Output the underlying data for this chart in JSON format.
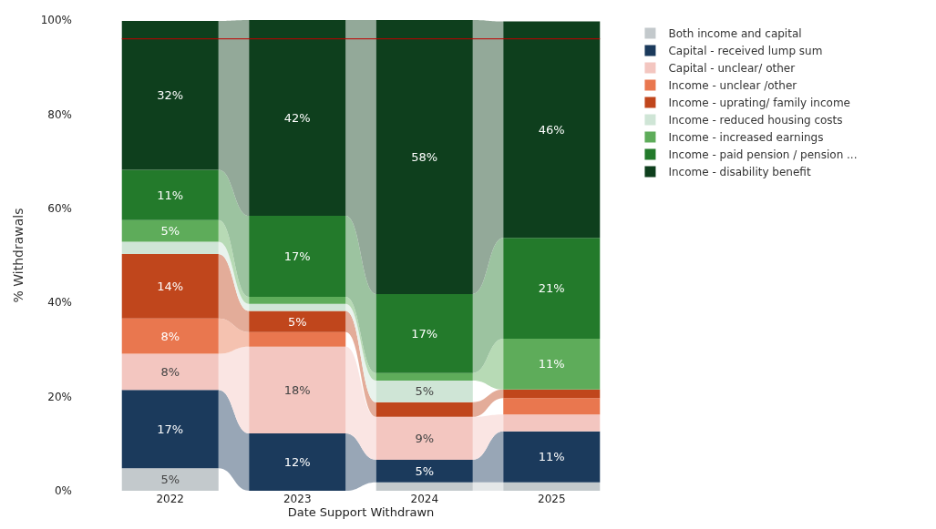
{
  "chart_data": {
    "type": "bar",
    "stacked": true,
    "xlabel": "Date Support Withdrawn",
    "ylabel": "% Withdrawals",
    "categories": [
      "2022",
      "2023",
      "2024",
      "2025"
    ],
    "ylim": [
      0,
      100
    ],
    "yticks": [
      {
        "value": 0,
        "label": "0%"
      },
      {
        "value": 20,
        "label": "20%"
      },
      {
        "value": 40,
        "label": "40%"
      },
      {
        "value": 60,
        "label": "60%"
      },
      {
        "value": 80,
        "label": "80%"
      },
      {
        "value": 100,
        "label": "100%"
      }
    ],
    "grid": false,
    "legend": "top right",
    "ref_lines": [
      {
        "axis": "y",
        "value": 96,
        "color": "#c00000"
      }
    ],
    "series": [
      {
        "name": "Both income and capital",
        "color": "#c3c9cc",
        "values": [
          4.8,
          null,
          1.8,
          1.8
        ],
        "value_labels": [
          "5%",
          null,
          null,
          null
        ]
      },
      {
        "name": "Capital - received lump sum",
        "color": "#1b3a5c",
        "values": [
          16.6,
          12.2,
          4.8,
          10.8
        ],
        "value_labels": [
          "17%",
          "12%",
          "5%",
          "11%"
        ]
      },
      {
        "name": "Capital - unclear/ other",
        "color": "#f3c6c0",
        "values": [
          7.7,
          18.4,
          9.1,
          3.6
        ],
        "value_labels": [
          "8%",
          "18%",
          "9%",
          null
        ]
      },
      {
        "name": "Income - unclear /other",
        "color": "#e9774f",
        "values": [
          7.5,
          3.1,
          null,
          3.5
        ],
        "value_labels": [
          "8%",
          null,
          null,
          null
        ]
      },
      {
        "name": "Income - uprating/ family income",
        "color": "#c0461c",
        "values": [
          13.7,
          4.5,
          3.1,
          1.8
        ],
        "value_labels": [
          "14%",
          "5%",
          null,
          null
        ]
      },
      {
        "name": "Income - reduced housing costs",
        "color": "#cfe5d6",
        "values": [
          2.6,
          1.5,
          4.6,
          null
        ],
        "value_labels": [
          null,
          null,
          "5%",
          null
        ]
      },
      {
        "name": "Income - increased earnings",
        "color": "#5eac5a",
        "values": [
          4.6,
          1.5,
          1.6,
          10.8
        ],
        "value_labels": [
          "5%",
          null,
          null,
          "11%"
        ]
      },
      {
        "name": "Income - paid pension / pension ...",
        "color": "#237a2b",
        "values": [
          10.7,
          17.2,
          16.8,
          21.4
        ],
        "value_labels": [
          "11%",
          "17%",
          "17%",
          "21%"
        ]
      },
      {
        "name": "Income - disability benefit",
        "color": "#0e3f1d",
        "values": [
          31.6,
          41.6,
          58.2,
          46.0
        ],
        "value_labels": [
          "32%",
          "42%",
          "58%",
          "46%"
        ]
      }
    ]
  }
}
